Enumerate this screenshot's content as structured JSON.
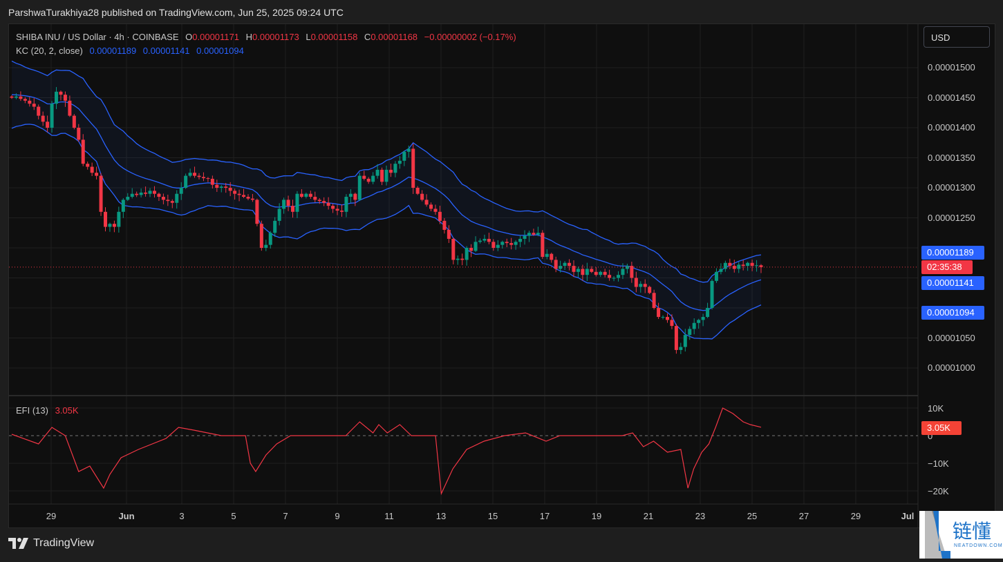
{
  "header": {
    "published": "ParshwaTurakhiya28 published on TradingView.com, Jun 25, 2025 09:24 UTC"
  },
  "legend": {
    "symbol": "SHIBA INU / US Dollar · 4h · COINBASE",
    "o_label": "O",
    "o": "0.00001171",
    "h_label": "H",
    "h": "0.00001173",
    "l_label": "L",
    "l": "0.00001158",
    "c_label": "C",
    "c": "0.00001168",
    "change": "−0.00000002 (−0.17%)",
    "kc_label": "KC (20, 2, close)",
    "kc_upper": "0.00001189",
    "kc_mid": "0.00001141",
    "kc_lower": "0.00001094"
  },
  "price_axis": {
    "currency": "USD",
    "ticks": [
      {
        "value": 1500,
        "label": "0.00001500"
      },
      {
        "value": 1450,
        "label": "0.00001450"
      },
      {
        "value": 1400,
        "label": "0.00001400"
      },
      {
        "value": 1350,
        "label": "0.00001350"
      },
      {
        "value": 1300,
        "label": "0.00001300"
      },
      {
        "value": 1250,
        "label": "0.00001250"
      },
      {
        "value": 1050,
        "label": "0.00001050"
      },
      {
        "value": 1000,
        "label": "0.00001000"
      }
    ],
    "kc_upper_label": "0.00001189",
    "kc_mid_label": "0.00001141",
    "kc_lower_label": "0.00001094",
    "countdown": "02:35:38"
  },
  "efi": {
    "label": "EFI (13)",
    "value": "3.05K",
    "ticks": [
      "10K",
      "0",
      "−10K",
      "−20K"
    ],
    "current_label": "3.05K"
  },
  "time_axis": [
    "29",
    "Jun",
    "3",
    "5",
    "7",
    "9",
    "11",
    "13",
    "15",
    "17",
    "19",
    "21",
    "23",
    "25",
    "27",
    "29",
    "Jul"
  ],
  "footer": {
    "brand": "TradingView"
  },
  "watermark": {
    "cn": "链懂",
    "en": "NEATDOWN.COM"
  },
  "colors": {
    "up": "#089981",
    "down": "#f23645",
    "kc": "#2962ff",
    "efi": "#f23645",
    "bg": "#0f0f0f"
  },
  "chart_data": {
    "type": "candlestick",
    "title": "SHIBA INU / US Dollar · 4h · COINBASE",
    "price_unit": "1e-8 USD",
    "ylim": [
      950,
      1530
    ],
    "closes": [
      1450,
      1452,
      1448,
      1445,
      1440,
      1435,
      1420,
      1410,
      1400,
      1440,
      1460,
      1455,
      1445,
      1420,
      1400,
      1380,
      1340,
      1335,
      1325,
      1320,
      1260,
      1235,
      1240,
      1235,
      1260,
      1280,
      1285,
      1290,
      1288,
      1292,
      1290,
      1295,
      1290,
      1285,
      1280,
      1278,
      1275,
      1290,
      1300,
      1320,
      1325,
      1320,
      1318,
      1316,
      1315,
      1305,
      1300,
      1302,
      1300,
      1295,
      1290,
      1288,
      1285,
      1282,
      1280,
      1240,
      1200,
      1205,
      1225,
      1245,
      1265,
      1280,
      1270,
      1260,
      1290,
      1285,
      1290,
      1285,
      1280,
      1278,
      1275,
      1270,
      1265,
      1262,
      1260,
      1285,
      1290,
      1280,
      1320,
      1315,
      1310,
      1320,
      1330,
      1310,
      1330,
      1325,
      1340,
      1345,
      1360,
      1365,
      1300,
      1290,
      1280,
      1272,
      1265,
      1260,
      1245,
      1230,
      1215,
      1180,
      1182,
      1180,
      1200,
      1195,
      1210,
      1212,
      1215,
      1210,
      1200,
      1205,
      1210,
      1208,
      1205,
      1210,
      1215,
      1220,
      1225,
      1222,
      1225,
      1185,
      1190,
      1180,
      1165,
      1170,
      1175,
      1170,
      1160,
      1165,
      1155,
      1165,
      1160,
      1155,
      1160,
      1155,
      1150,
      1150,
      1155,
      1165,
      1170,
      1150,
      1135,
      1140,
      1135,
      1125,
      1100,
      1085,
      1085,
      1080,
      1070,
      1030,
      1035,
      1055,
      1065,
      1075,
      1080,
      1085,
      1100,
      1145,
      1160,
      1165,
      1175,
      1170,
      1165,
      1172,
      1170,
      1175,
      1170,
      1171,
      1168
    ],
    "last_candle": {
      "open": 1171,
      "high": 1173,
      "low": 1158,
      "close": 1168
    },
    "current_price": 1168,
    "kc_last": {
      "upper": 1189,
      "middle": 1141,
      "lower": 1094
    },
    "efi_points_k": [
      [
        0,
        0.5
      ],
      [
        6,
        -3
      ],
      [
        9,
        3
      ],
      [
        12,
        0
      ],
      [
        15,
        -13
      ],
      [
        17.5,
        -11
      ],
      [
        20.6,
        -19
      ],
      [
        22,
        -14
      ],
      [
        24.5,
        -8
      ],
      [
        28.4,
        -5
      ],
      [
        34.6,
        -1
      ],
      [
        37.4,
        3
      ],
      [
        40.8,
        2
      ],
      [
        43.9,
        1
      ],
      [
        47,
        0
      ],
      [
        52.4,
        0
      ],
      [
        53.5,
        -10
      ],
      [
        54.7,
        -13
      ],
      [
        57,
        -7
      ],
      [
        59.4,
        -3
      ],
      [
        62.5,
        0
      ],
      [
        74.9,
        0
      ],
      [
        78,
        5
      ],
      [
        81,
        1
      ],
      [
        82.3,
        4
      ],
      [
        84.2,
        1
      ],
      [
        87,
        4
      ],
      [
        89.6,
        0
      ],
      [
        95,
        0
      ],
      [
        96.3,
        -21
      ],
      [
        98.9,
        -12
      ],
      [
        102,
        -5
      ],
      [
        105.9,
        -2
      ],
      [
        110.5,
        0
      ],
      [
        115.2,
        1
      ],
      [
        119.8,
        -2
      ],
      [
        122.9,
        0
      ],
      [
        136.9,
        0
      ],
      [
        139.2,
        1
      ],
      [
        141.6,
        -4
      ],
      [
        143.9,
        -2
      ],
      [
        147,
        -6
      ],
      [
        150,
        -5
      ],
      [
        151.6,
        -19
      ],
      [
        152.9,
        -12
      ],
      [
        154.7,
        -6
      ],
      [
        156.3,
        -3
      ],
      [
        157.8,
        3
      ],
      [
        159.4,
        10
      ],
      [
        161.7,
        8
      ],
      [
        164,
        5
      ],
      [
        165.6,
        4
      ],
      [
        168,
        3.05
      ]
    ],
    "efi_ylim_k": [
      -23,
      14
    ]
  }
}
